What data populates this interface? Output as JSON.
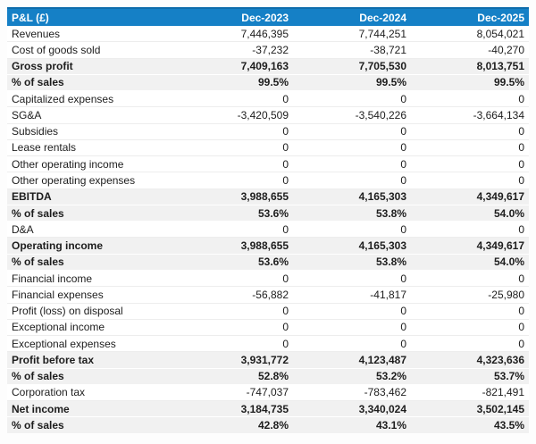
{
  "colors": {
    "header_bg": "#1580c6",
    "header_top_border": "#0d6cab",
    "header_text": "#ffffff",
    "emphasis_row_bg": "#f1f1f1",
    "row_separator": "#ededed",
    "body_text": "#1d1d1d",
    "page_bg": "#fdfdfd"
  },
  "table": {
    "header": {
      "label": "P&L (£)",
      "columns": [
        "Dec-2023",
        "Dec-2024",
        "Dec-2025"
      ]
    },
    "rows": [
      {
        "label": "Revenues",
        "values": [
          "7,446,395",
          "7,744,251",
          "8,054,021"
        ],
        "emphasis": false
      },
      {
        "label": "Cost of goods sold",
        "values": [
          "-37,232",
          "-38,721",
          "-40,270"
        ],
        "emphasis": false
      },
      {
        "label": "Gross profit",
        "values": [
          "7,409,163",
          "7,705,530",
          "8,013,751"
        ],
        "emphasis": true
      },
      {
        "label": "% of sales",
        "values": [
          "99.5%",
          "99.5%",
          "99.5%"
        ],
        "emphasis": true
      },
      {
        "label": "Capitalized expenses",
        "values": [
          "0",
          "0",
          "0"
        ],
        "emphasis": false
      },
      {
        "label": "SG&A",
        "values": [
          "-3,420,509",
          "-3,540,226",
          "-3,664,134"
        ],
        "emphasis": false
      },
      {
        "label": "Subsidies",
        "values": [
          "0",
          "0",
          "0"
        ],
        "emphasis": false
      },
      {
        "label": "Lease rentals",
        "values": [
          "0",
          "0",
          "0"
        ],
        "emphasis": false
      },
      {
        "label": "Other operating income",
        "values": [
          "0",
          "0",
          "0"
        ],
        "emphasis": false
      },
      {
        "label": "Other operating expenses",
        "values": [
          "0",
          "0",
          "0"
        ],
        "emphasis": false
      },
      {
        "label": "EBITDA",
        "values": [
          "3,988,655",
          "4,165,303",
          "4,349,617"
        ],
        "emphasis": true
      },
      {
        "label": "% of sales",
        "values": [
          "53.6%",
          "53.8%",
          "54.0%"
        ],
        "emphasis": true
      },
      {
        "label": "D&A",
        "values": [
          "0",
          "0",
          "0"
        ],
        "emphasis": false
      },
      {
        "label": "Operating income",
        "values": [
          "3,988,655",
          "4,165,303",
          "4,349,617"
        ],
        "emphasis": true
      },
      {
        "label": "% of sales",
        "values": [
          "53.6%",
          "53.8%",
          "54.0%"
        ],
        "emphasis": true
      },
      {
        "label": "Financial income",
        "values": [
          "0",
          "0",
          "0"
        ],
        "emphasis": false
      },
      {
        "label": "Financial expenses",
        "values": [
          "-56,882",
          "-41,817",
          "-25,980"
        ],
        "emphasis": false
      },
      {
        "label": "Profit (loss) on disposal",
        "values": [
          "0",
          "0",
          "0"
        ],
        "emphasis": false
      },
      {
        "label": "Exceptional income",
        "values": [
          "0",
          "0",
          "0"
        ],
        "emphasis": false
      },
      {
        "label": "Exceptional expenses",
        "values": [
          "0",
          "0",
          "0"
        ],
        "emphasis": false
      },
      {
        "label": "Profit before tax",
        "values": [
          "3,931,772",
          "4,123,487",
          "4,323,636"
        ],
        "emphasis": true
      },
      {
        "label": "% of sales",
        "values": [
          "52.8%",
          "53.2%",
          "53.7%"
        ],
        "emphasis": true
      },
      {
        "label": "Corporation tax",
        "values": [
          "-747,037",
          "-783,462",
          "-821,491"
        ],
        "emphasis": false
      },
      {
        "label": "Net income",
        "values": [
          "3,184,735",
          "3,340,024",
          "3,502,145"
        ],
        "emphasis": true
      },
      {
        "label": "% of sales",
        "values": [
          "42.8%",
          "43.1%",
          "43.5%"
        ],
        "emphasis": true
      }
    ]
  }
}
